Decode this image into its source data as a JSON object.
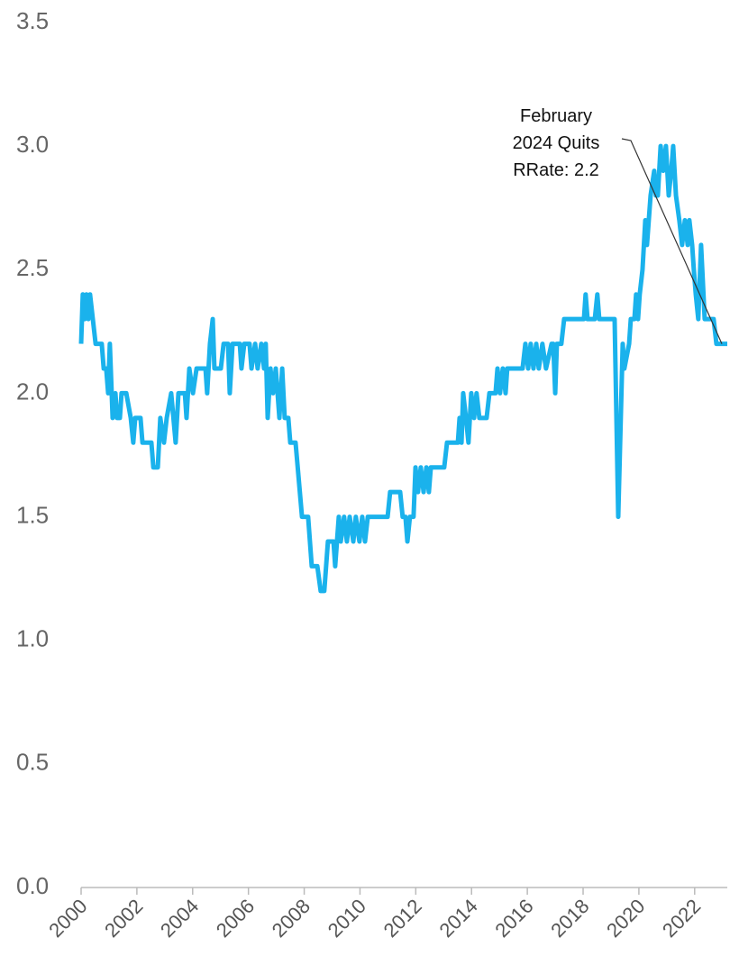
{
  "chart_data": {
    "type": "line",
    "annotation": [
      "February",
      "2024 Quits",
      "RRate: 2.2"
    ],
    "x": [
      2000.0,
      2000.06,
      2000.13,
      2000.19,
      2000.26,
      2000.32,
      2000.42,
      2000.52,
      2000.74,
      2000.81,
      2000.9,
      2000.97,
      2001.03,
      2001.13,
      2001.23,
      2001.29,
      2001.39,
      2001.45,
      2001.62,
      2001.78,
      2001.87,
      2001.94,
      2002.13,
      2002.2,
      2002.52,
      2002.59,
      2002.75,
      2002.84,
      2002.97,
      2003.07,
      2003.23,
      2003.39,
      2003.49,
      2003.72,
      2003.78,
      2003.88,
      2004.01,
      2004.14,
      2004.46,
      2004.52,
      2004.62,
      2004.72,
      2004.78,
      2005.01,
      2005.11,
      2005.27,
      2005.33,
      2005.43,
      2005.69,
      2005.75,
      2005.85,
      2006.04,
      2006.11,
      2006.24,
      2006.33,
      2006.46,
      2006.56,
      2006.62,
      2006.69,
      2006.79,
      2006.88,
      2006.98,
      2007.11,
      2007.21,
      2007.3,
      2007.43,
      2007.5,
      2007.69,
      2007.92,
      2008.14,
      2008.27,
      2008.47,
      2008.59,
      2008.72,
      2008.85,
      2009.05,
      2009.11,
      2009.24,
      2009.31,
      2009.43,
      2009.53,
      2009.63,
      2009.76,
      2009.85,
      2009.98,
      2010.08,
      2010.18,
      2010.28,
      2010.99,
      2011.08,
      2011.44,
      2011.53,
      2011.63,
      2011.7,
      2011.79,
      2011.92,
      2011.99,
      2012.08,
      2012.18,
      2012.28,
      2012.38,
      2012.47,
      2012.54,
      2013.02,
      2013.12,
      2013.51,
      2013.57,
      2013.64,
      2013.7,
      2013.8,
      2013.89,
      2013.99,
      2014.09,
      2014.18,
      2014.28,
      2014.54,
      2014.64,
      2014.86,
      2014.93,
      2015.02,
      2015.12,
      2015.22,
      2015.28,
      2015.83,
      2015.93,
      2016.03,
      2016.12,
      2016.22,
      2016.32,
      2016.41,
      2016.54,
      2016.67,
      2016.87,
      2016.93,
      2017.0,
      2017.06,
      2017.22,
      2017.32,
      2018.03,
      2018.09,
      2018.16,
      2018.42,
      2018.51,
      2018.58,
      2019.13,
      2019.26,
      2019.42,
      2019.48,
      2019.65,
      2019.71,
      2019.84,
      2019.9,
      2019.97,
      2020.03,
      2020.13,
      2020.23,
      2020.29,
      2020.42,
      2020.55,
      2020.61,
      2020.68,
      2020.78,
      2020.87,
      2020.97,
      2021.07,
      2021.16,
      2021.23,
      2021.33,
      2021.45,
      2021.55,
      2021.65,
      2021.75,
      2021.81,
      2021.91,
      2021.97,
      2022.04,
      2022.13,
      2022.23,
      2022.36,
      2022.68,
      2022.78,
      2023.17
    ],
    "series": [
      {
        "name": "Quits Rate",
        "color": "#1ab2ec",
        "values": [
          2.2,
          2.4,
          2.3,
          2.4,
          2.3,
          2.4,
          2.3,
          2.2,
          2.2,
          2.1,
          2.1,
          2.0,
          2.2,
          1.9,
          2.0,
          1.9,
          1.9,
          2.0,
          2.0,
          1.9,
          1.8,
          1.9,
          1.9,
          1.8,
          1.8,
          1.7,
          1.7,
          1.9,
          1.8,
          1.9,
          2.0,
          1.8,
          2.0,
          2.0,
          1.9,
          2.1,
          2.0,
          2.1,
          2.1,
          2.0,
          2.2,
          2.3,
          2.1,
          2.1,
          2.2,
          2.2,
          2.0,
          2.2,
          2.2,
          2.1,
          2.2,
          2.2,
          2.1,
          2.2,
          2.1,
          2.2,
          2.1,
          2.2,
          1.9,
          2.1,
          2.0,
          2.1,
          1.9,
          2.1,
          1.9,
          1.9,
          1.8,
          1.8,
          1.5,
          1.5,
          1.3,
          1.3,
          1.2,
          1.2,
          1.4,
          1.4,
          1.3,
          1.5,
          1.4,
          1.5,
          1.4,
          1.5,
          1.4,
          1.5,
          1.4,
          1.5,
          1.4,
          1.5,
          1.5,
          1.6,
          1.6,
          1.5,
          1.5,
          1.4,
          1.5,
          1.5,
          1.7,
          1.6,
          1.7,
          1.6,
          1.7,
          1.6,
          1.7,
          1.7,
          1.8,
          1.8,
          1.9,
          1.8,
          2.0,
          1.9,
          1.8,
          2.0,
          1.9,
          2.0,
          1.9,
          1.9,
          2.0,
          2.0,
          2.1,
          2.0,
          2.1,
          2.0,
          2.1,
          2.1,
          2.2,
          2.1,
          2.2,
          2.1,
          2.2,
          2.1,
          2.2,
          2.1,
          2.2,
          2.2,
          2.0,
          2.2,
          2.2,
          2.3,
          2.3,
          2.4,
          2.3,
          2.3,
          2.4,
          2.3,
          2.3,
          1.5,
          2.2,
          2.1,
          2.2,
          2.3,
          2.3,
          2.4,
          2.3,
          2.4,
          2.5,
          2.7,
          2.6,
          2.8,
          2.9,
          2.8,
          2.8,
          3.0,
          2.9,
          3.0,
          2.8,
          2.9,
          3.0,
          2.8,
          2.7,
          2.6,
          2.7,
          2.6,
          2.7,
          2.6,
          2.5,
          2.4,
          2.3,
          2.6,
          2.3,
          2.3,
          2.2,
          2.2
        ]
      }
    ],
    "xlim": [
      2000,
      2023.17
    ],
    "xticks": [
      2000,
      2002,
      2004,
      2006,
      2008,
      2010,
      2012,
      2014,
      2016,
      2018,
      2020,
      2022
    ],
    "ylim": [
      0,
      3.5
    ],
    "yticks": [
      {
        "value": 0,
        "label": "0.0"
      },
      0.5,
      {
        "value": 1,
        "label": "1.0"
      },
      1.5,
      {
        "value": 2,
        "label": "2.0"
      },
      2.5,
      {
        "value": 3,
        "label": "3.0"
      },
      3.5
    ],
    "grid": false
  }
}
